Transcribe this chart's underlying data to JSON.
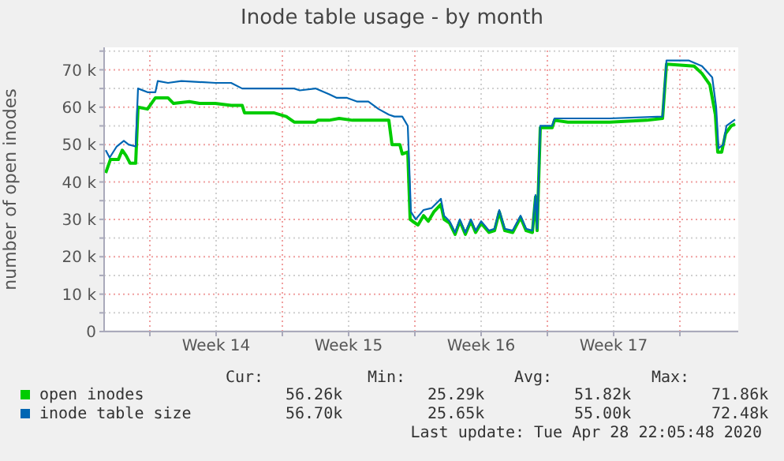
{
  "chart_data": {
    "type": "line",
    "title": "Inode table usage - by month",
    "ylabel": "number of open inodes",
    "xlim": [
      "2020-03-26T14:00",
      "2020-04-29T02:00"
    ],
    "xticks": [
      {
        "value": "2020-03-29",
        "label": null
      },
      {
        "value": "2020-04-01T12:00",
        "label": "Week 14"
      },
      {
        "value": "2020-04-05",
        "label": null
      },
      {
        "value": "2020-04-08T12:00",
        "label": "Week 15"
      },
      {
        "value": "2020-04-12",
        "label": null
      },
      {
        "value": "2020-04-15T12:00",
        "label": "Week 16"
      },
      {
        "value": "2020-04-19",
        "label": null
      },
      {
        "value": "2020-04-22T12:00",
        "label": "Week 17"
      },
      {
        "value": "2020-04-26",
        "label": null
      }
    ],
    "ylim": [
      0,
      76
    ],
    "yticks": [
      0,
      {
        "value": 5,
        "label": null
      },
      {
        "value": 10,
        "label": "10 k"
      },
      {
        "value": 15,
        "label": null
      },
      {
        "value": 20,
        "label": "20 k"
      },
      {
        "value": 25,
        "label": null
      },
      {
        "value": 30,
        "label": "30 k"
      },
      {
        "value": 35,
        "label": null
      },
      {
        "value": 40,
        "label": "40 k"
      },
      {
        "value": 45,
        "label": null
      },
      {
        "value": 50,
        "label": "50 k"
      },
      {
        "value": 55,
        "label": null
      },
      {
        "value": 60,
        "label": "60 k"
      },
      {
        "value": 65,
        "label": null
      },
      {
        "value": 70,
        "label": "70 k"
      },
      {
        "value": 75,
        "label": null
      }
    ],
    "grid": true,
    "legend": "bottom",
    "marker": "none",
    "line_style": "solid",
    "series": [
      {
        "name": "open inodes",
        "color": "#00cc00",
        "x": [
          "2020-03-26T16:00",
          "2020-03-26T22:00",
          "2020-03-27T08:00",
          "2020-03-27T13:00",
          "2020-03-27T18:00",
          "2020-03-27T23:00",
          "2020-03-28T06:00",
          "2020-03-28T09:00",
          "2020-03-28T21:00",
          "2020-03-29T07:00",
          "2020-03-29T23:00",
          "2020-03-30T06:00",
          "2020-03-31T02:00",
          "2020-03-31T15:00",
          "2020-04-01T11:00",
          "2020-04-02T07:00",
          "2020-04-02T21:00",
          "2020-04-03T00:00",
          "2020-04-04T13:00",
          "2020-04-05T05:00",
          "2020-04-05T15:00",
          "2020-04-06T18:00",
          "2020-04-06T21:00",
          "2020-04-07T11:00",
          "2020-04-08T00:00",
          "2020-04-08T17:00",
          "2020-04-10T15:00",
          "2020-04-10T19:00",
          "2020-04-11T05:00",
          "2020-04-11T08:00",
          "2020-04-11T15:00",
          "2020-04-11T18:00",
          "2020-04-11T21:00",
          "2020-04-12T04:00",
          "2020-04-12T11:00",
          "2020-04-12T17:00",
          "2020-04-13T00:00",
          "2020-04-13T09:00",
          "2020-04-13T13:00",
          "2020-04-13T20:00",
          "2020-04-14T03:00",
          "2020-04-14T09:00",
          "2020-04-14T16:00",
          "2020-04-14T23:00",
          "2020-04-15T05:00",
          "2020-04-15T12:00",
          "2020-04-15T22:00",
          "2020-04-16T05:00",
          "2020-04-16T11:00",
          "2020-04-16T18:00",
          "2020-04-17T04:00",
          "2020-04-17T14:00",
          "2020-04-17T21:00",
          "2020-04-18T05:00",
          "2020-04-18T09:00",
          "2020-04-18T11:00",
          "2020-04-18T15:00",
          "2020-04-19T06:00",
          "2020-04-19T09:00",
          "2020-04-20T02:00",
          "2020-04-22T07:00",
          "2020-04-24T06:00",
          "2020-04-25T02:00",
          "2020-04-25T07:00",
          "2020-04-26T18:00",
          "2020-04-27T04:00",
          "2020-04-27T14:00",
          "2020-04-27T21:00",
          "2020-04-28T00:00",
          "2020-04-28T05:00",
          "2020-04-28T10:00",
          "2020-04-28T17:00",
          "2020-04-28T22:00"
        ],
        "values": [
          42.4,
          46,
          46,
          48.5,
          47,
          45,
          45,
          60,
          59.5,
          62.5,
          62.5,
          61,
          61.5,
          61,
          61,
          60.5,
          60.5,
          58.5,
          58.5,
          57.5,
          56,
          56,
          56.5,
          56.5,
          57,
          56.5,
          56.5,
          50,
          50,
          47.5,
          48,
          30,
          29.5,
          28.5,
          31,
          29.5,
          32,
          34,
          30,
          29,
          26,
          29.5,
          26,
          29.5,
          26.5,
          29,
          26.5,
          27,
          32,
          27,
          26.5,
          30.5,
          27,
          26.5,
          36,
          27,
          54.5,
          54.5,
          56.5,
          56,
          56,
          56.5,
          57,
          71.5,
          71,
          69,
          66,
          58,
          48,
          48,
          53,
          55,
          55.5
        ]
      },
      {
        "name": "inode table size",
        "color": "#0066b3",
        "x": [
          "2020-03-26T16:00",
          "2020-03-26T21:00",
          "2020-03-27T06:00",
          "2020-03-27T15:00",
          "2020-03-27T21:00",
          "2020-03-28T06:00",
          "2020-03-28T09:00",
          "2020-03-28T21:00",
          "2020-03-29T07:00",
          "2020-03-29T10:00",
          "2020-03-29T23:00",
          "2020-03-30T16:00",
          "2020-04-01T11:00",
          "2020-04-02T07:00",
          "2020-04-02T21:00",
          "2020-04-05T15:00",
          "2020-04-05T22:00",
          "2020-04-06T18:00",
          "2020-04-07T11:00",
          "2020-04-07T21:00",
          "2020-04-08T10:00",
          "2020-04-08T23:00",
          "2020-04-09T13:00",
          "2020-04-10T02:00",
          "2020-04-10T15:00",
          "2020-04-10T22:00",
          "2020-04-11T08:00",
          "2020-04-11T15:00",
          "2020-04-11T19:00",
          "2020-04-12T01:00",
          "2020-04-12T11:00",
          "2020-04-12T21:00",
          "2020-04-13T09:00",
          "2020-04-13T13:00",
          "2020-04-13T20:00",
          "2020-04-14T03:00",
          "2020-04-14T09:00",
          "2020-04-14T16:00",
          "2020-04-14T23:00",
          "2020-04-15T05:00",
          "2020-04-15T12:00",
          "2020-04-15T22:00",
          "2020-04-16T05:00",
          "2020-04-16T11:00",
          "2020-04-16T18:00",
          "2020-04-17T04:00",
          "2020-04-17T14:00",
          "2020-04-17T21:00",
          "2020-04-18T05:00",
          "2020-04-18T09:00",
          "2020-04-18T11:00",
          "2020-04-18T15:00",
          "2020-04-19T06:00",
          "2020-04-19T09:00",
          "2020-04-22T07:00",
          "2020-04-25T02:00",
          "2020-04-25T07:00",
          "2020-04-26T11:00",
          "2020-04-27T04:00",
          "2020-04-27T17:00",
          "2020-04-27T22:00",
          "2020-04-28T01:00",
          "2020-04-28T07:00",
          "2020-04-28T11:00",
          "2020-04-28T22:00"
        ],
        "values": [
          48.5,
          46.5,
          49.5,
          51,
          50,
          49.5,
          65,
          64,
          64,
          67,
          66.5,
          67,
          66.5,
          66.5,
          65,
          65,
          64.5,
          65,
          63.5,
          62.5,
          62.5,
          61.5,
          61.5,
          59.5,
          58,
          57.5,
          57.5,
          55,
          32,
          30,
          32.5,
          33,
          35.5,
          31,
          29.5,
          26.5,
          30,
          26.5,
          30,
          27,
          29.5,
          27,
          27.5,
          32.5,
          27.5,
          27,
          31,
          27.5,
          27,
          36.5,
          27.5,
          55,
          55,
          57,
          57,
          57.5,
          72.5,
          72.5,
          71,
          68,
          60,
          49,
          50,
          55,
          56.7
        ]
      }
    ],
    "annotations": [
      "Cur:",
      "Min:",
      "Avg:",
      "Max:",
      "56.26k",
      "25.29k",
      "51.82k",
      "71.86k",
      "56.70k",
      "25.65k",
      "55.00k",
      "72.48k",
      "Last update: Tue Apr 28 22:05:48 2020"
    ]
  }
}
